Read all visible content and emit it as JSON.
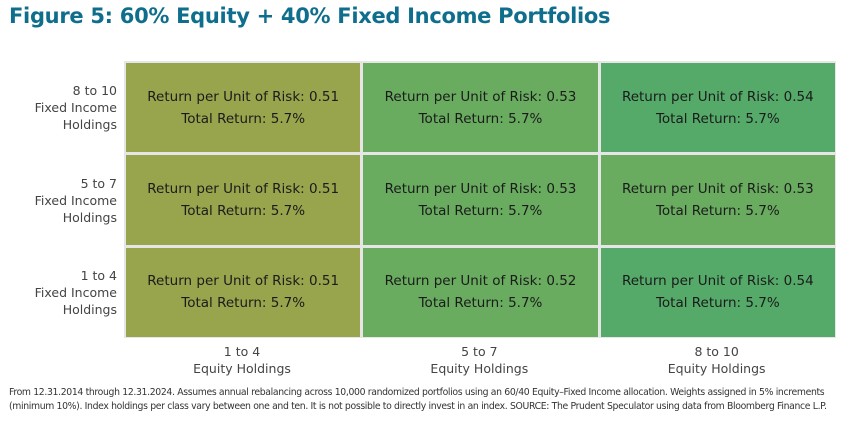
{
  "title": "Figure 5: 60% Equity + 40% Fixed Income Portfolios",
  "chart_data": {
    "type": "heatmap",
    "title": "Figure 5: 60% Equity + 40% Fixed Income Portfolios",
    "x_categories": [
      "1 to 4\nEquity Holdings",
      "5 to 7\nEquity Holdings",
      "8 to 10\nEquity Holdings"
    ],
    "y_categories": [
      "8 to 10\nFixed Income\nHoldings",
      "5 to 7\nFixed Income\nHoldings",
      "1 to 4\nFixed Income\nHoldings"
    ],
    "return_per_unit_risk": [
      [
        0.51,
        0.53,
        0.54
      ],
      [
        0.51,
        0.53,
        0.53
      ],
      [
        0.51,
        0.52,
        0.54
      ]
    ],
    "total_return_pct": [
      [
        5.7,
        5.7,
        5.7
      ],
      [
        5.7,
        5.7,
        5.7
      ],
      [
        5.7,
        5.7,
        5.7
      ]
    ],
    "cell_label_1": "Return per Unit of Risk: ",
    "cell_label_2": "Total Return: ",
    "colors": {
      "low": "#98a54d",
      "mid": "#69ac60",
      "high": "#55aa69"
    }
  },
  "footnote": "From 12.31.2014 through 12.31.2024. Assumes annual rebalancing across 10,000 randomized portfolios using an 60/40 Equity–Fixed Income allocation. Weights assigned in 5% increments (minimum 10%). Index holdings per class vary between one and ten. It is not possible to directly invest in an index. SOURCE: The Prudent Speculator using data from Bloomberg Finance L.P."
}
